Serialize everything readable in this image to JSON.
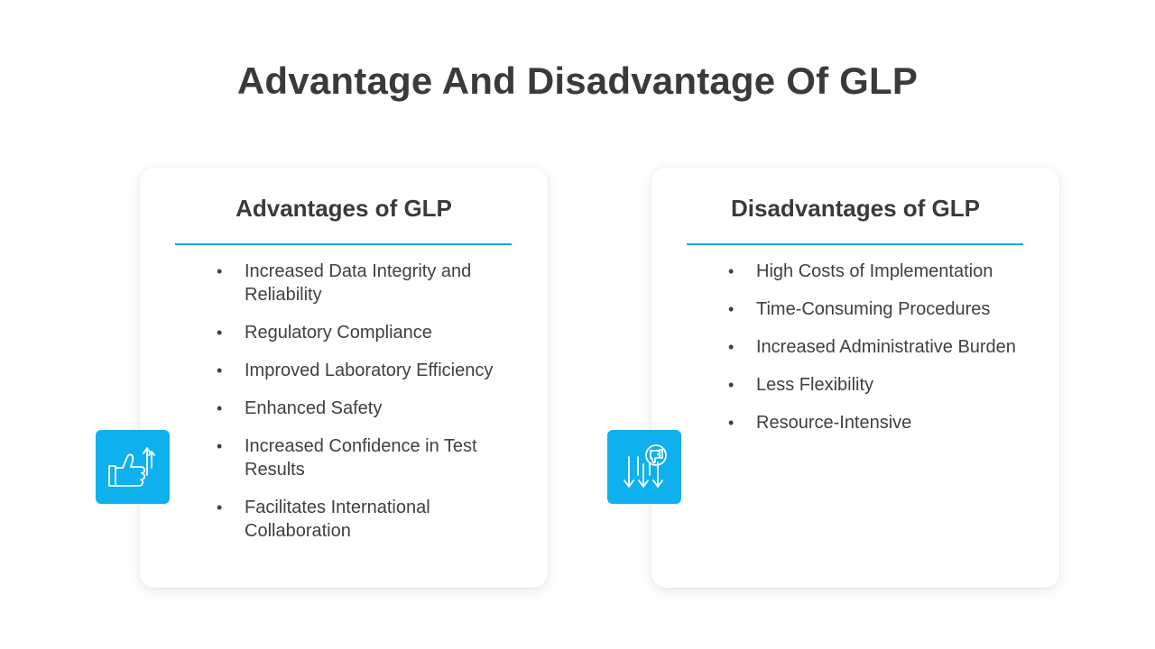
{
  "title": "Advantage And Disadvantage Of GLP",
  "advantages": {
    "heading": "Advantages of GLP",
    "icon": "thumbs-up-arrow-icon",
    "items": [
      "Increased Data Integrity and Reliability",
      "Regulatory Compliance",
      "Improved Laboratory Efficiency",
      "Enhanced Safety",
      "Increased Confidence in Test Results",
      "Facilitates International Collaboration"
    ]
  },
  "disadvantages": {
    "heading": "Disadvantages of GLP",
    "icon": "thumbs-down-arrows-icon",
    "items": [
      "High Costs of Implementation",
      "Time-Consuming Procedures",
      "Increased Administrative Burden",
      "Less Flexibility",
      "Resource-Intensive"
    ]
  },
  "colors": {
    "accent": "#14a9e6",
    "icon_bg": "#0fb0ee",
    "title_text": "#3a3a3a",
    "body_text": "#404040"
  }
}
